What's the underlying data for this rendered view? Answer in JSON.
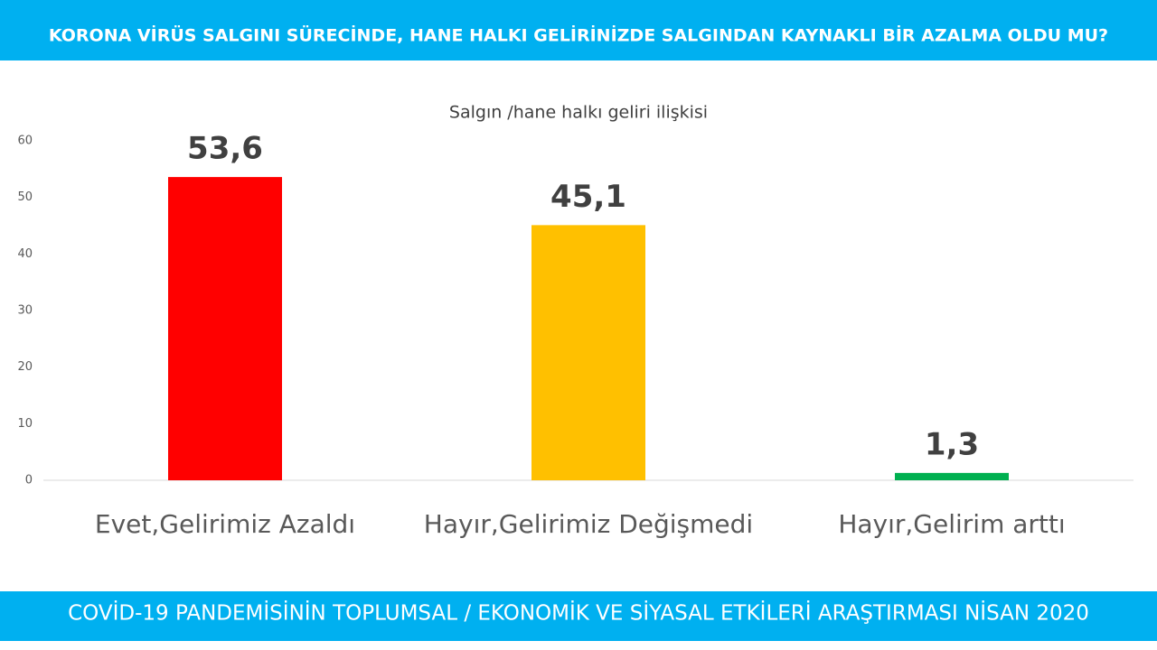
{
  "header": "KORONA VİRÜS SALGINI SÜRECİNDE, HANE HALKI GELİRİNİZDE SALGINDAN KAYNAKLI BİR AZALMA OLDU MU?",
  "footer": "COVİD-19 PANDEMİSİNİN TOPLUMSAL / EKONOMİK VE SİYASAL ETKİLERİ ARAŞTIRMASI NİSAN 2020",
  "chart_data": {
    "type": "bar",
    "title": "Salgın /hane halkı geliri ilişkisi",
    "categories": [
      "Evet,Gelirimiz Azaldı",
      "Hayır,Gelirimiz Değişmedi",
      "Hayır,Gelirim arttı"
    ],
    "values": [
      53.6,
      45.1,
      1.3
    ],
    "value_labels": [
      "53,6",
      "45,1",
      "1,3"
    ],
    "colors": [
      "#ff0000",
      "#ffc000",
      "#00b050"
    ],
    "ylim": [
      0,
      60
    ],
    "yticks": [
      0,
      10,
      20,
      30,
      40,
      50,
      60
    ],
    "grid": false
  }
}
